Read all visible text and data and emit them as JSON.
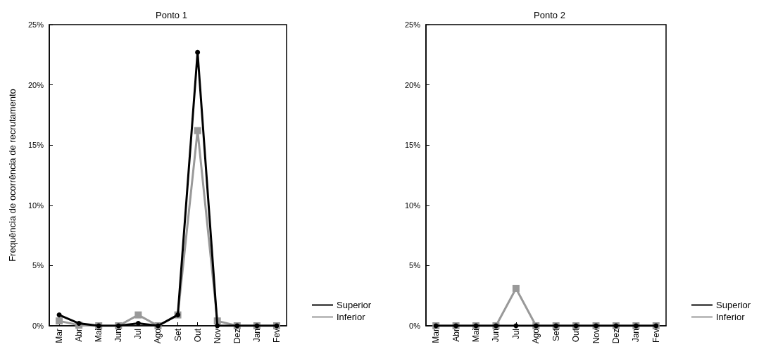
{
  "chart_data": [
    {
      "type": "line",
      "title": "Ponto 1",
      "ylabel": "Frequência de ocorrência de recrutamento",
      "categories": [
        "Mar",
        "Abr",
        "Mai",
        "Jun",
        "Jul",
        "Ago",
        "Set",
        "Out",
        "Nov",
        "Dez",
        "Jan",
        "Fev"
      ],
      "series": [
        {
          "name": "Superior",
          "color": "#000000",
          "marker": "circle",
          "values": [
            0.9,
            0.2,
            0,
            0,
            0.2,
            0,
            0.9,
            22.7,
            0,
            0,
            0,
            0
          ]
        },
        {
          "name": "Inferior",
          "color": "#999999",
          "marker": "square",
          "values": [
            0.4,
            0.05,
            0,
            0,
            0.9,
            0,
            0.9,
            16.2,
            0.4,
            0,
            0,
            0
          ]
        }
      ],
      "ylim": [
        0,
        25
      ],
      "yticks": [
        {
          "value": 0,
          "label": "0%"
        },
        {
          "value": 5,
          "label": "5%"
        },
        {
          "value": 10,
          "label": "10%"
        },
        {
          "value": 15,
          "label": "15%"
        },
        {
          "value": 20,
          "label": "20%"
        },
        {
          "value": 25,
          "label": "25%"
        }
      ],
      "grid": false,
      "legend": "bottom right",
      "line_style": "solid"
    },
    {
      "type": "line",
      "title": "Ponto 2",
      "categories": [
        "Mar",
        "Abr",
        "Mai",
        "Jun",
        "Jul",
        "Ago",
        "Set",
        "Out",
        "Nov",
        "Dez",
        "Jan",
        "Fev"
      ],
      "series": [
        {
          "name": "Superior",
          "color": "#000000",
          "marker": "circle",
          "values": [
            0,
            0,
            0,
            0,
            0,
            0,
            0,
            0,
            0,
            0,
            0,
            0
          ]
        },
        {
          "name": "Inferior",
          "color": "#999999",
          "marker": "square",
          "values": [
            0,
            0,
            0,
            0,
            3.1,
            0,
            0,
            0,
            0,
            0,
            0,
            0
          ]
        }
      ],
      "ylim": [
        0,
        25
      ],
      "yticks": [
        {
          "value": 0,
          "label": "0%"
        },
        {
          "value": 5,
          "label": "5%"
        },
        {
          "value": 10,
          "label": "10%"
        },
        {
          "value": 15,
          "label": "15%"
        },
        {
          "value": 20,
          "label": "20%"
        },
        {
          "value": 25,
          "label": "25%"
        }
      ],
      "grid": false,
      "legend": "bottom right",
      "line_style": "solid"
    }
  ]
}
